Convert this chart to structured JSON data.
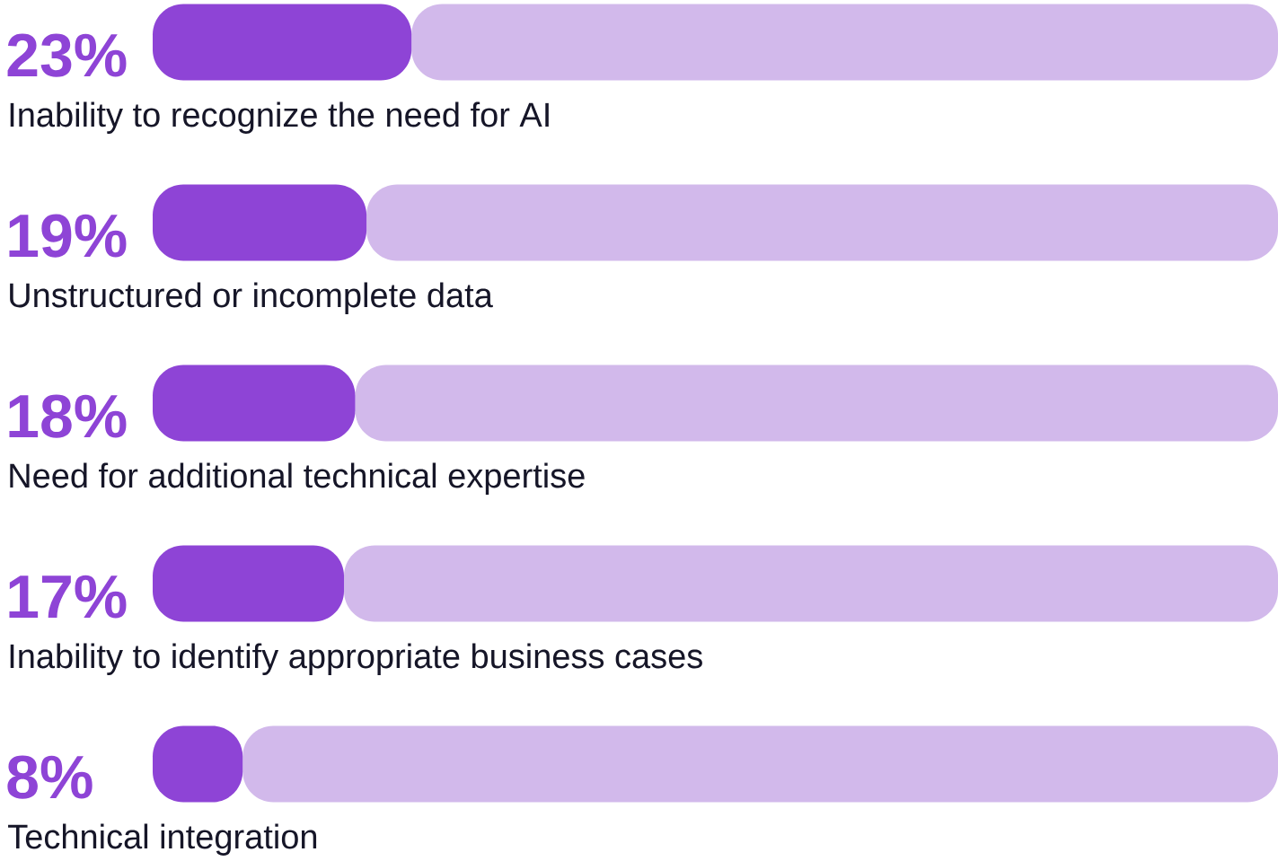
{
  "chart_data": {
    "type": "bar",
    "orientation": "horizontal",
    "stacked": true,
    "categories": [
      "Inability to recognize the need for AI",
      "Unstructured or incomplete data",
      "Need for additional technical expertise",
      "Inability to identify appropriate business cases",
      "Technical integration"
    ],
    "series": [
      {
        "color": "#8e44d6",
        "values": [
          23,
          19,
          18,
          17,
          8
        ],
        "value_labels": [
          "23%",
          "19%",
          "18%",
          "17%",
          "8%"
        ]
      },
      {
        "color": "#d2b9eb",
        "values": [
          77,
          81,
          82,
          83,
          92
        ]
      }
    ],
    "xlim": [
      0,
      100
    ],
    "tick_labels": false
  }
}
